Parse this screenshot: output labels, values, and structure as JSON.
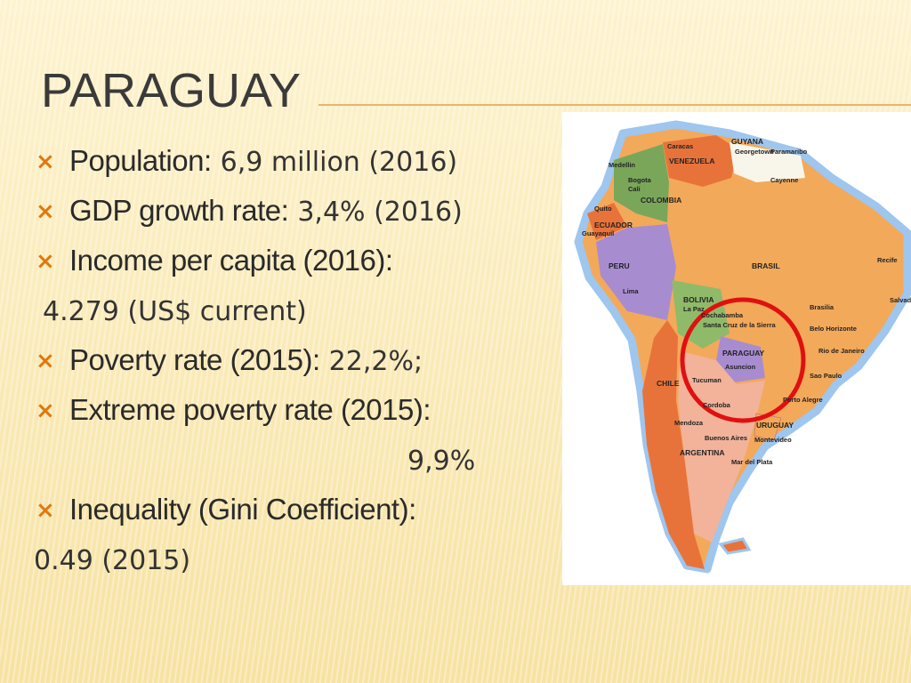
{
  "title": "PARAGUAY",
  "bullets": [
    {
      "label": "Population:",
      "value": "6,9 million (2016)"
    },
    {
      "label": "GDP growth rate:",
      "value": "3,4% (2016)"
    },
    {
      "label": "Income per capita (2016):",
      "continuation": "4.279 (US$ current)"
    },
    {
      "label": "Poverty rate (2015):",
      "value": "22,2%;"
    },
    {
      "label": "Extreme poverty rate (2015):",
      "continuation": "9,9%"
    },
    {
      "label": "Inequality (Gini Coefficient):",
      "continuation": "0.49 (2015)"
    }
  ],
  "map": {
    "labels": [
      "Caracas",
      "VENEZUELA",
      "GUYANA",
      "Georgetown",
      "Paramaribo",
      "Cayenne",
      "Medellin",
      "Bogota",
      "Cali",
      "COLOMBIA",
      "Quito",
      "ECUADOR",
      "Guayaquil",
      "PERU",
      "Lima",
      "BRASIL",
      "Recife",
      "Salvador",
      "BOLIVIA",
      "La Paz",
      "Cochabamba",
      "Santa Cruz de la Sierra",
      "Brasilia",
      "Belo Horizonte",
      "PARAGUAY",
      "Asuncion",
      "Rio de Janeiro",
      "Sao Paulo",
      "CHILE",
      "Tucuman",
      "Cordoba",
      "Porto Alegre",
      "Mendoza",
      "URUGUAY",
      "Buenos Aires",
      "Montevideo",
      "ARGENTINA",
      "Mar del Plata"
    ]
  }
}
